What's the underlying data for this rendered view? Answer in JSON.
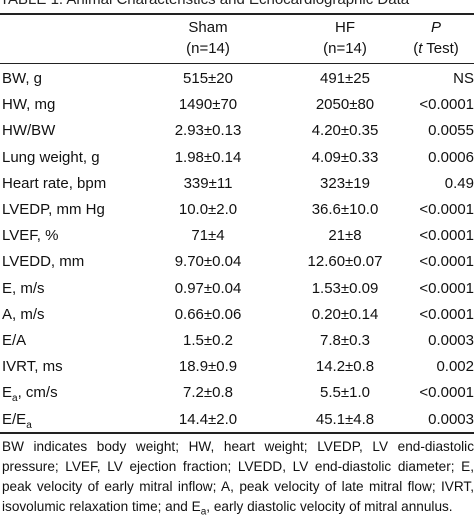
{
  "table": {
    "title": "TABLE 1.  Animal Characteristics and Echocardiographic Data",
    "headers": {
      "sham": "Sham",
      "sham_n": "(n=14)",
      "hf": "HF",
      "hf_n": "(n=14)",
      "p": "P",
      "p_sub_open": "(",
      "p_sub_t": "t",
      "p_sub_rest": " Test)"
    },
    "rows": [
      {
        "label": "BW, g",
        "sham": "515±20",
        "hf": "491±25",
        "p": "NS"
      },
      {
        "label": "HW, mg",
        "sham": "1490±70",
        "hf": "2050±80",
        "p": "<0.0001"
      },
      {
        "label": "HW/BW",
        "sham": "2.93±0.13",
        "hf": "4.20±0.35",
        "p": "0.0055"
      },
      {
        "label": "Lung weight, g",
        "sham": "1.98±0.14",
        "hf": "4.09±0.33",
        "p": "0.0006"
      },
      {
        "label": "Heart rate, bpm",
        "sham": "339±11",
        "hf": "323±19",
        "p": "0.49"
      },
      {
        "label": "LVEDP, mm Hg",
        "sham": "10.0±2.0",
        "hf": "36.6±10.0",
        "p": "<0.0001"
      },
      {
        "label": "LVEF, %",
        "sham": "71±4",
        "hf": "21±8",
        "p": "<0.0001"
      },
      {
        "label": "LVEDD, mm",
        "sham": "9.70±0.04",
        "hf": "12.60±0.07",
        "p": "<0.0001"
      },
      {
        "label": "E, m/s",
        "sham": "0.97±0.04",
        "hf": "1.53±0.09",
        "p": "<0.0001"
      },
      {
        "label": "A, m/s",
        "sham": "0.66±0.06",
        "hf": "0.20±0.14",
        "p": "<0.0001"
      },
      {
        "label": "E/A",
        "sham": "1.5±0.2",
        "hf": "7.8±0.3",
        "p": "0.0003"
      },
      {
        "label": "IVRT, ms",
        "sham": "18.9±0.9",
        "hf": "14.2±0.8",
        "p": "0.002"
      },
      {
        "label": "E",
        "label_sub": "a",
        "label_suffix": ", cm/s",
        "sham": "7.2±0.8",
        "hf": "5.5±1.0",
        "p": "<0.0001"
      },
      {
        "label": "E/E",
        "label_sub": "a",
        "label_suffix": "",
        "sham": "14.4±2.0",
        "hf": "45.1±4.8",
        "p": "0.0003"
      }
    ],
    "footnote_main": "BW indicates body weight; HW, heart weight; LVEDP, LV end-diastolic pressure; LVEF, LV ejection fraction; LVEDD, LV end-diastolic diameter; E, peak velocity of early mitral inflow; A, peak velocity of late mitral flow; IVRT, isovolumic relaxation time; and E",
    "footnote_sub": "a",
    "footnote_end": ", early diastolic velocity of mitral annulus."
  }
}
